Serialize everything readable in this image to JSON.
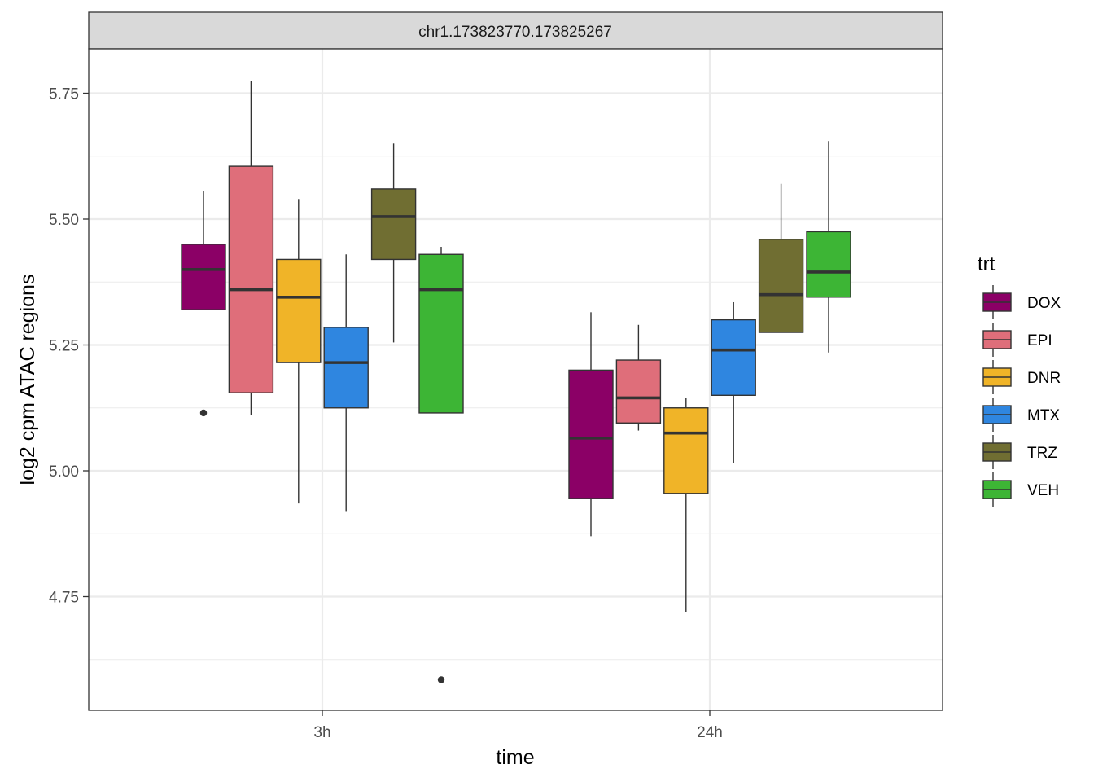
{
  "chart_data": {
    "type": "boxplot",
    "facet_title": "chr1.173823770.173825267",
    "xlabel": "time",
    "ylabel": "log2 cpm ATAC regions",
    "categories": [
      "3h",
      "24h"
    ],
    "ylim": [
      4.53,
      5.84
    ],
    "yticks": [
      4.75,
      5.0,
      5.25,
      5.5,
      5.75
    ],
    "ytick_labels": [
      "4.75",
      "5.00",
      "5.25",
      "5.50",
      "5.75"
    ],
    "grid": true,
    "legend_title": "trt",
    "legend_position": "right",
    "series": [
      {
        "name": "DOX",
        "color": "#8b0066",
        "boxes": [
          {
            "whisker_low": 5.32,
            "q1": 5.32,
            "median": 5.4,
            "q3": 5.45,
            "whisker_high": 5.555,
            "outliers": [
              5.115
            ]
          },
          {
            "whisker_low": 4.87,
            "q1": 4.945,
            "median": 5.065,
            "q3": 5.2,
            "whisker_high": 5.315,
            "outliers": []
          }
        ]
      },
      {
        "name": "EPI",
        "color": "#df6e7a",
        "boxes": [
          {
            "whisker_low": 5.11,
            "q1": 5.155,
            "median": 5.36,
            "q3": 5.605,
            "whisker_high": 5.775,
            "outliers": []
          },
          {
            "whisker_low": 5.08,
            "q1": 5.095,
            "median": 5.145,
            "q3": 5.22,
            "whisker_high": 5.29,
            "outliers": []
          }
        ]
      },
      {
        "name": "DNR",
        "color": "#f0b428",
        "boxes": [
          {
            "whisker_low": 4.935,
            "q1": 5.215,
            "median": 5.345,
            "q3": 5.42,
            "whisker_high": 5.54,
            "outliers": []
          },
          {
            "whisker_low": 4.72,
            "q1": 4.955,
            "median": 5.075,
            "q3": 5.125,
            "whisker_high": 5.145,
            "outliers": []
          }
        ]
      },
      {
        "name": "MTX",
        "color": "#2f86e0",
        "boxes": [
          {
            "whisker_low": 4.92,
            "q1": 5.125,
            "median": 5.215,
            "q3": 5.285,
            "whisker_high": 5.43,
            "outliers": []
          },
          {
            "whisker_low": 5.015,
            "q1": 5.15,
            "median": 5.24,
            "q3": 5.3,
            "whisker_high": 5.335,
            "outliers": []
          }
        ]
      },
      {
        "name": "TRZ",
        "color": "#706e32",
        "boxes": [
          {
            "whisker_low": 5.255,
            "q1": 5.42,
            "median": 5.505,
            "q3": 5.56,
            "whisker_high": 5.65,
            "outliers": []
          },
          {
            "whisker_low": 5.275,
            "q1": 5.275,
            "median": 5.35,
            "q3": 5.46,
            "whisker_high": 5.57,
            "outliers": []
          }
        ]
      },
      {
        "name": "VEH",
        "color": "#3db535",
        "boxes": [
          {
            "whisker_low": 5.115,
            "q1": 5.115,
            "median": 5.36,
            "q3": 5.43,
            "whisker_high": 5.445,
            "outliers": [
              4.585
            ]
          },
          {
            "whisker_low": 5.235,
            "q1": 5.345,
            "median": 5.395,
            "q3": 5.475,
            "whisker_high": 5.655,
            "outliers": []
          }
        ]
      }
    ]
  }
}
